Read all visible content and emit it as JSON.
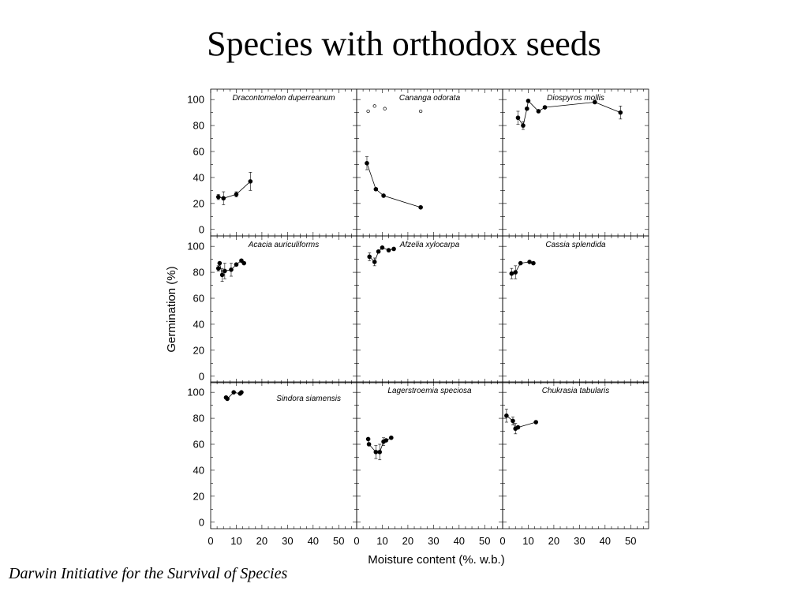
{
  "page": {
    "title": "Species with orthodox seeds",
    "footer": "Darwin Initiative for the Survival of Species"
  },
  "chart_data": {
    "type": "scatter",
    "xlabel": "Moisture content (%. w.b.)",
    "ylabel": "Germination (%)",
    "xlim": [
      0,
      57
    ],
    "ylim": [
      -5,
      108
    ],
    "xticks": [
      0,
      10,
      20,
      30,
      40,
      50
    ],
    "yticks": [
      0,
      20,
      40,
      60,
      80,
      100
    ],
    "grid": false,
    "panels": [
      {
        "name": "Dracontomelon duperreanum",
        "label_pos": "top-center",
        "points": [
          [
            3,
            25,
            2
          ],
          [
            5,
            24,
            5
          ],
          [
            10,
            27,
            2
          ],
          [
            15.5,
            37,
            7
          ]
        ],
        "connect": true
      },
      {
        "name": "Cananga odorata",
        "label_pos": "top-center",
        "points": [
          [
            4,
            51,
            5
          ],
          [
            7.5,
            31,
            0
          ],
          [
            10.5,
            26,
            0
          ],
          [
            25,
            17,
            0
          ]
        ],
        "connect": true,
        "open_points": [
          [
            4.5,
            91
          ],
          [
            7,
            95
          ],
          [
            11,
            93
          ],
          [
            25,
            91
          ]
        ]
      },
      {
        "name": "Diospyros mollis",
        "label_pos": "top-center",
        "points": [
          [
            6,
            86,
            5
          ],
          [
            8,
            80,
            3
          ],
          [
            9.5,
            93,
            0
          ],
          [
            10,
            99,
            0
          ],
          [
            14,
            91,
            0
          ],
          [
            16.5,
            94,
            0
          ],
          [
            36,
            98,
            0
          ],
          [
            46,
            90,
            5
          ]
        ],
        "connect": true
      },
      {
        "name": "Acacia auriculiforms",
        "label_pos": "top-center",
        "points": [
          [
            3,
            83,
            2
          ],
          [
            3.5,
            87,
            0
          ],
          [
            4.5,
            78,
            5
          ],
          [
            5.5,
            81,
            6
          ],
          [
            8,
            82,
            5
          ],
          [
            10,
            86,
            0
          ],
          [
            12,
            89,
            0
          ],
          [
            13,
            87,
            0
          ]
        ],
        "connect": true
      },
      {
        "name": "Afzelia xylocarpa",
        "label_pos": "top-center",
        "points": [
          [
            5,
            92,
            3
          ],
          [
            7,
            88,
            3
          ],
          [
            8.5,
            96,
            0
          ],
          [
            10,
            99,
            0
          ],
          [
            12.5,
            97,
            0
          ],
          [
            14.5,
            98,
            0
          ]
        ],
        "connect": true
      },
      {
        "name": "Cassia splendida",
        "label_pos": "top-center",
        "points": [
          [
            3.5,
            79,
            4
          ],
          [
            5,
            80,
            5
          ],
          [
            7,
            87,
            0
          ],
          [
            10.5,
            88,
            0
          ],
          [
            12,
            87,
            0
          ]
        ],
        "connect": true
      },
      {
        "name": "Sindora siamensis",
        "label_pos": "top-right",
        "points": [
          [
            6,
            96,
            0
          ],
          [
            6.5,
            95,
            0
          ],
          [
            9,
            100,
            0
          ],
          [
            11.5,
            99,
            0
          ],
          [
            12,
            100,
            0
          ]
        ],
        "connect": true
      },
      {
        "name": "Lagerstroemia speciosa",
        "label_pos": "top-center",
        "points": [
          [
            4.5,
            64,
            0
          ],
          [
            4.8,
            60,
            0
          ],
          [
            7.5,
            54,
            5
          ],
          [
            9,
            54,
            6
          ],
          [
            10.5,
            62,
            3
          ],
          [
            11.5,
            63,
            0
          ],
          [
            13.5,
            65,
            0
          ]
        ],
        "connect": true
      },
      {
        "name": "Chukrasia tabularis",
        "label_pos": "top-center",
        "points": [
          [
            1.5,
            82,
            5
          ],
          [
            4,
            78,
            3
          ],
          [
            5,
            72,
            4
          ],
          [
            6,
            73,
            0
          ],
          [
            13,
            77,
            0
          ]
        ],
        "connect": true
      }
    ]
  }
}
